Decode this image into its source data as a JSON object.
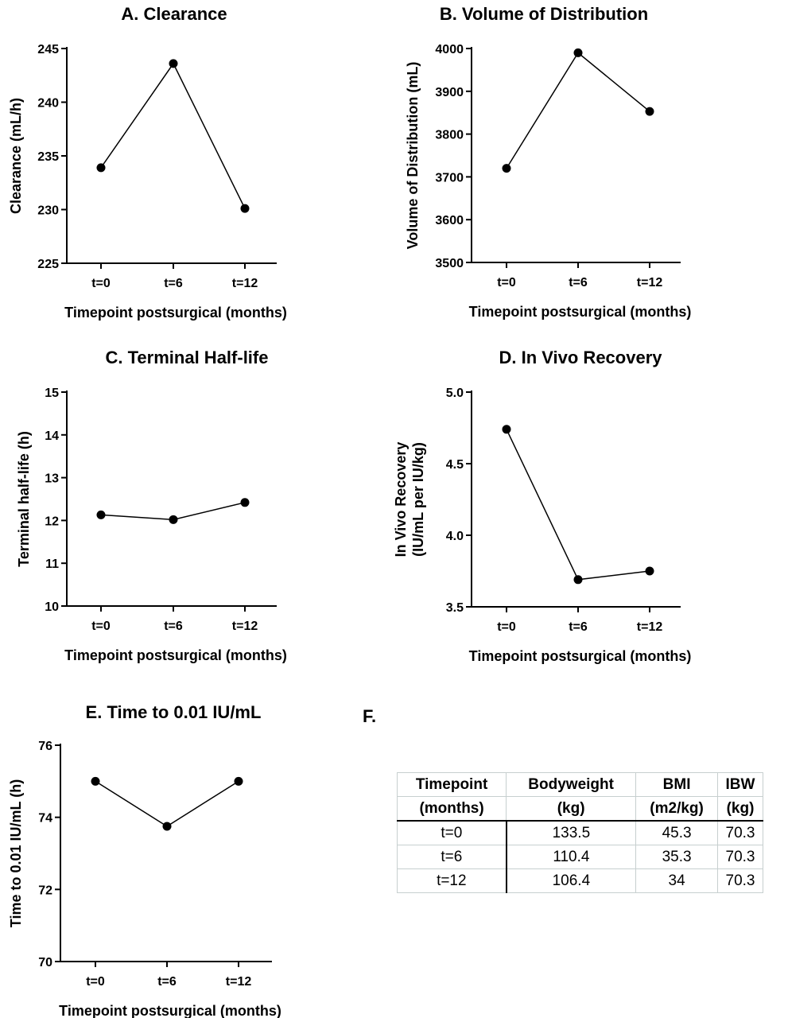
{
  "chart_data": [
    {
      "type": "line",
      "title": "A. Clearance",
      "xlabel": "Timepoint postsurgical (months)",
      "ylabel": "Clearance (mL/h)",
      "categories": [
        "t=0",
        "t=6",
        "t=12"
      ],
      "values": [
        233.9,
        243.6,
        230.1
      ],
      "ylim": [
        225,
        245
      ],
      "yticks": [
        225,
        230,
        235,
        240,
        245
      ],
      "grid": false
    },
    {
      "type": "line",
      "title": "B. Volume of Distribution",
      "xlabel": "Timepoint postsurgical (months)",
      "ylabel": "Volume of Distribution (mL)",
      "categories": [
        "t=0",
        "t=6",
        "t=12"
      ],
      "values": [
        3720,
        3990,
        3853
      ],
      "ylim": [
        3500,
        4000
      ],
      "yticks": [
        3500,
        3600,
        3700,
        3800,
        3900,
        4000
      ],
      "grid": false
    },
    {
      "type": "line",
      "title": "C. Terminal Half-life",
      "xlabel": "Timepoint postsurgical (months)",
      "ylabel": "Terminal half-life (h)",
      "categories": [
        "t=0",
        "t=6",
        "t=12"
      ],
      "values": [
        12.13,
        12.02,
        12.42
      ],
      "ylim": [
        10,
        15
      ],
      "yticks": [
        10,
        11,
        12,
        13,
        14,
        15
      ],
      "grid": false
    },
    {
      "type": "line",
      "title": "D. In Vivo Recovery",
      "xlabel": "Timepoint postsurgical (months)",
      "ylabel": [
        "In Vivo Recovery",
        "(IU/mL per IU/kg)"
      ],
      "categories": [
        "t=0",
        "t=6",
        "t=12"
      ],
      "values": [
        4.74,
        3.69,
        3.75
      ],
      "ylim": [
        3.5,
        5.0
      ],
      "yticks": [
        "3.5",
        "4.0",
        "4.5",
        "5.0"
      ],
      "grid": false
    },
    {
      "type": "line",
      "title": "E. Time to 0.01 IU/mL",
      "xlabel": "Timepoint postsurgical (months)",
      "ylabel": "Time to 0.01 IU/mL (h)",
      "categories": [
        "t=0",
        "t=6",
        "t=12"
      ],
      "values": [
        75.0,
        73.75,
        75.0
      ],
      "ylim": [
        70,
        76
      ],
      "yticks": [
        70,
        72,
        74,
        76
      ],
      "grid": false
    },
    {
      "type": "table",
      "title": "F.",
      "header_line1": [
        "Timepoint",
        "Bodyweight",
        "BMI",
        "IBW"
      ],
      "header_line2": [
        "(months)",
        "(kg)",
        "(m2/kg)",
        "(kg)"
      ],
      "rows": [
        [
          "t=0",
          "133.5",
          "45.3",
          "70.3"
        ],
        [
          "t=6",
          "110.4",
          "35.3",
          "70.3"
        ],
        [
          "t=12",
          "106.4",
          "34",
          "70.3"
        ]
      ]
    }
  ]
}
